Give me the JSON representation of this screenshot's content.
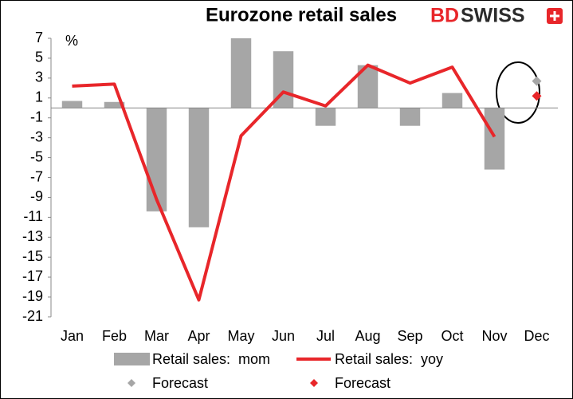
{
  "logo": [
    "BD",
    "SWISS"
  ],
  "chart_data": {
    "type": "combo",
    "title": "Eurozone retail sales",
    "y_label": "%",
    "categories": [
      "Jan",
      "Feb",
      "Mar",
      "Apr",
      "May",
      "Jun",
      "Jul",
      "Aug",
      "Sep",
      "Oct",
      "Nov",
      "Dec"
    ],
    "ylim": [
      -21,
      7
    ],
    "yticks": [
      7,
      5,
      3,
      1,
      -1,
      -3,
      -5,
      -7,
      -9,
      -11,
      -13,
      -15,
      -17,
      -19,
      -21
    ],
    "series": [
      {
        "name": "Retail sales:  mom",
        "type": "bar",
        "color": "#a6a6a6",
        "values": [
          0.7,
          0.6,
          -10.4,
          -12.0,
          7,
          5.7,
          -1.8,
          4.3,
          -1.8,
          1.5,
          -6.2,
          null
        ]
      },
      {
        "name": "Retail sales:  yoy",
        "type": "line",
        "color": "#e8262a",
        "values": [
          2.2,
          2.4,
          -9.2,
          -19.3,
          -2.8,
          1.6,
          0.2,
          4.3,
          2.5,
          4.1,
          -2.9,
          null
        ]
      },
      {
        "name": "Forecast",
        "type": "scatter",
        "color": "#a6a6a6",
        "values": [
          null,
          null,
          null,
          null,
          null,
          null,
          null,
          null,
          null,
          null,
          null,
          2.7
        ]
      },
      {
        "name": "Forecast",
        "type": "scatter",
        "color": "#e8262a",
        "values": [
          null,
          null,
          null,
          null,
          null,
          null,
          null,
          null,
          null,
          null,
          null,
          1.2
        ]
      }
    ]
  }
}
